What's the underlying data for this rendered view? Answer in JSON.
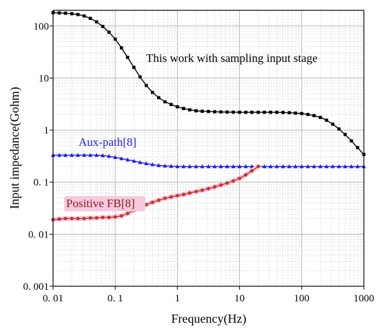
{
  "chart_data": {
    "type": "line",
    "xlabel": "Frequency(Hz)",
    "ylabel": "Input impedance(Gohm)",
    "xscale": "log",
    "yscale": "log",
    "xlim": [
      0.01,
      1000
    ],
    "ylim": [
      0.001,
      200
    ],
    "grid": true,
    "x_ticks": [
      {
        "value": 0.01,
        "label": "0. 01"
      },
      {
        "value": 0.1,
        "label": "0. 1"
      },
      {
        "value": 1,
        "label": "1"
      },
      {
        "value": 10,
        "label": "10"
      },
      {
        "value": 100,
        "label": "100"
      },
      {
        "value": 1000,
        "label": "1000"
      }
    ],
    "y_ticks": [
      {
        "value": 0.001,
        "label": "0. 001"
      },
      {
        "value": 0.01,
        "label": "0. 01"
      },
      {
        "value": 0.1,
        "label": "0. 1"
      },
      {
        "value": 1,
        "label": "1"
      },
      {
        "value": 10,
        "label": "10"
      },
      {
        "value": 100,
        "label": "100"
      }
    ],
    "series": [
      {
        "name": "This work with sampling input stage",
        "color": "#000000",
        "marker": "square",
        "x": [
          0.01,
          0.0126,
          0.0158,
          0.02,
          0.0251,
          0.0316,
          0.0398,
          0.0501,
          0.0631,
          0.0794,
          0.1,
          0.126,
          0.158,
          0.2,
          0.251,
          0.316,
          0.398,
          0.501,
          0.631,
          0.794,
          1,
          1.26,
          1.58,
          2,
          2.51,
          3.16,
          3.98,
          5.01,
          6.31,
          7.94,
          10,
          12.6,
          15.8,
          20,
          25.1,
          31.6,
          39.8,
          50.1,
          63.1,
          79.4,
          100,
          126,
          158,
          200,
          251,
          316,
          398,
          501,
          631,
          794,
          1000
        ],
        "y": [
          180,
          178,
          176,
          172,
          166,
          156,
          140,
          120,
          98,
          76,
          56,
          38,
          25,
          16,
          10.5,
          7.2,
          5.3,
          4.2,
          3.5,
          3.1,
          2.8,
          2.6,
          2.45,
          2.35,
          2.3,
          2.28,
          2.25,
          2.23,
          2.22,
          2.21,
          2.2,
          2.2,
          2.2,
          2.2,
          2.2,
          2.2,
          2.2,
          2.18,
          2.16,
          2.12,
          2.08,
          2.0,
          1.9,
          1.75,
          1.55,
          1.3,
          1.05,
          0.82,
          0.62,
          0.46,
          0.34
        ]
      },
      {
        "name": "Aux-path[8]",
        "color": "#1a1aff",
        "marker": "triangle",
        "x": [
          0.01,
          0.0126,
          0.0158,
          0.02,
          0.0251,
          0.0316,
          0.0398,
          0.0501,
          0.0631,
          0.0794,
          0.1,
          0.126,
          0.158,
          0.2,
          0.251,
          0.316,
          0.398,
          0.501,
          0.631,
          0.794,
          1,
          1.26,
          1.58,
          2,
          2.51,
          3.16,
          3.98,
          5.01,
          6.31,
          7.94,
          10,
          12.6,
          15.8,
          20,
          25.1,
          31.6,
          39.8,
          50.1,
          63.1,
          79.4,
          100,
          126,
          158,
          200,
          251,
          316,
          398,
          501,
          631,
          794,
          1000
        ],
        "y": [
          0.33,
          0.33,
          0.33,
          0.33,
          0.33,
          0.33,
          0.33,
          0.33,
          0.325,
          0.315,
          0.3,
          0.285,
          0.27,
          0.255,
          0.24,
          0.228,
          0.218,
          0.21,
          0.205,
          0.203,
          0.2,
          0.2,
          0.2,
          0.2,
          0.2,
          0.2,
          0.2,
          0.2,
          0.2,
          0.2,
          0.2,
          0.2,
          0.2,
          0.2,
          0.2,
          0.2,
          0.2,
          0.2,
          0.2,
          0.2,
          0.2,
          0.2,
          0.2,
          0.2,
          0.2,
          0.2,
          0.2,
          0.2,
          0.2,
          0.2,
          0.2
        ]
      },
      {
        "name": "Positive FB[8]",
        "color": "#c0362c",
        "marker": "circle",
        "x": [
          0.01,
          0.0126,
          0.0158,
          0.02,
          0.0251,
          0.0316,
          0.0398,
          0.0501,
          0.0631,
          0.0794,
          0.1,
          0.126,
          0.158,
          0.2,
          0.251,
          0.316,
          0.398,
          0.501,
          0.631,
          0.794,
          1,
          1.26,
          1.58,
          2,
          2.51,
          3.16,
          3.98,
          5.01,
          6.31,
          7.94,
          10,
          12.6,
          15.8,
          20
        ],
        "y": [
          0.019,
          0.0195,
          0.02,
          0.02,
          0.02,
          0.02,
          0.0205,
          0.0205,
          0.021,
          0.021,
          0.0215,
          0.0225,
          0.025,
          0.029,
          0.033,
          0.037,
          0.041,
          0.045,
          0.049,
          0.052,
          0.055,
          0.058,
          0.062,
          0.066,
          0.07,
          0.075,
          0.081,
          0.088,
          0.096,
          0.105,
          0.118,
          0.138,
          0.165,
          0.2
        ]
      }
    ],
    "annotations": [
      {
        "text": "This work with sampling input stage",
        "color": "#000000"
      },
      {
        "text": "Aux-path[8]",
        "color": "#1a1aff"
      },
      {
        "text": "Positive FB[8]",
        "color": "#8b1a1a",
        "highlight": "#f7c9de"
      }
    ]
  }
}
